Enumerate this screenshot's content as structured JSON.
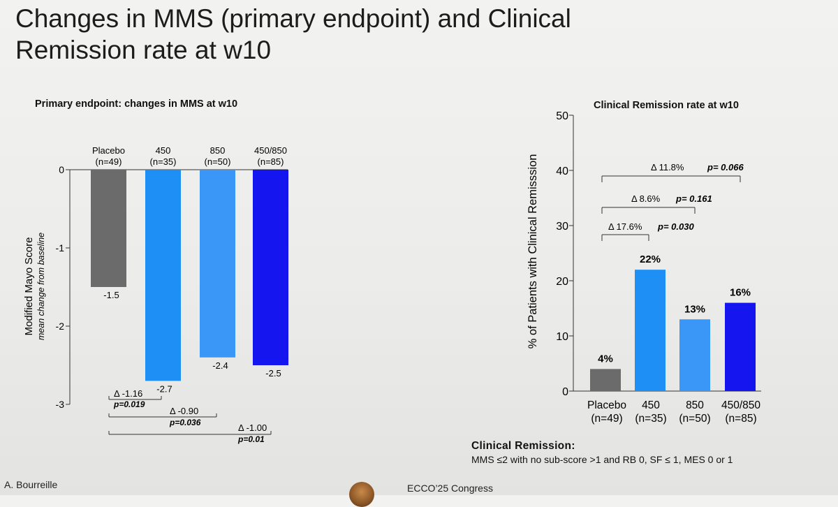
{
  "slide": {
    "title_line1": "Changes in MMS (primary endpoint) and Clinical",
    "title_line2": "Remission rate at w10",
    "author": "A. Bourreille",
    "congress": "ECCO’25 Congress"
  },
  "chart_data": [
    {
      "type": "bar",
      "title": "Primary endpoint: changes in MMS at w10",
      "ylabel": "Modified Mayo Score",
      "ylabel_sub": "mean change from baseline",
      "ylim": [
        -3,
        0
      ],
      "yticks": [
        0,
        -1,
        -2,
        -3
      ],
      "categories": [
        "Placebo",
        "450",
        "850",
        "450/850"
      ],
      "category_n": [
        "(n=49)",
        "(n=35)",
        "(n=50)",
        "(n=85)"
      ],
      "values": [
        -1.5,
        -2.7,
        -2.4,
        -2.5
      ],
      "value_labels": [
        "-1.5",
        "-2.7",
        "-2.4",
        "-2.5"
      ],
      "bar_colors": [
        "#6b6b6b",
        "#1e8ff5",
        "#3a96f7",
        "#1515f0"
      ],
      "comparisons": [
        {
          "from": 0,
          "to": 1,
          "delta": "Δ -1.16",
          "p": "p=0.019"
        },
        {
          "from": 0,
          "to": 2,
          "delta": "Δ -0.90",
          "p": "p=0.036"
        },
        {
          "from": 0,
          "to": 3,
          "delta": "Δ -1.00",
          "p": "p=0.01"
        }
      ]
    },
    {
      "type": "bar",
      "title": "Clinical Remission rate at w10",
      "ylabel": "% of Patients with Clinical Remisssion",
      "ylim": [
        0,
        50
      ],
      "yticks": [
        0,
        10,
        20,
        30,
        40,
        50
      ],
      "categories": [
        "Placebo",
        "450",
        "850",
        "450/850"
      ],
      "category_n": [
        "(n=49)",
        "(n=35)",
        "(n=50)",
        "(n=85)"
      ],
      "values": [
        4,
        22,
        13,
        16
      ],
      "value_labels": [
        "4%",
        "22%",
        "13%",
        "16%"
      ],
      "bar_colors": [
        "#6b6b6b",
        "#1e8ff5",
        "#3a96f7",
        "#1515f0"
      ],
      "comparisons": [
        {
          "from": 0,
          "to": 1,
          "delta": "Δ 17.6%",
          "p": "p= 0.030"
        },
        {
          "from": 0,
          "to": 2,
          "delta": "Δ 8.6%",
          "p": "p= 0.161"
        },
        {
          "from": 0,
          "to": 3,
          "delta": "Δ 11.8%",
          "p": "p= 0.066"
        }
      ]
    }
  ],
  "definition": {
    "title": "Clinical Remission:",
    "text": "MMS ≤2 with no sub-score >1 and RB 0, SF ≤ 1, MES 0 or 1"
  }
}
